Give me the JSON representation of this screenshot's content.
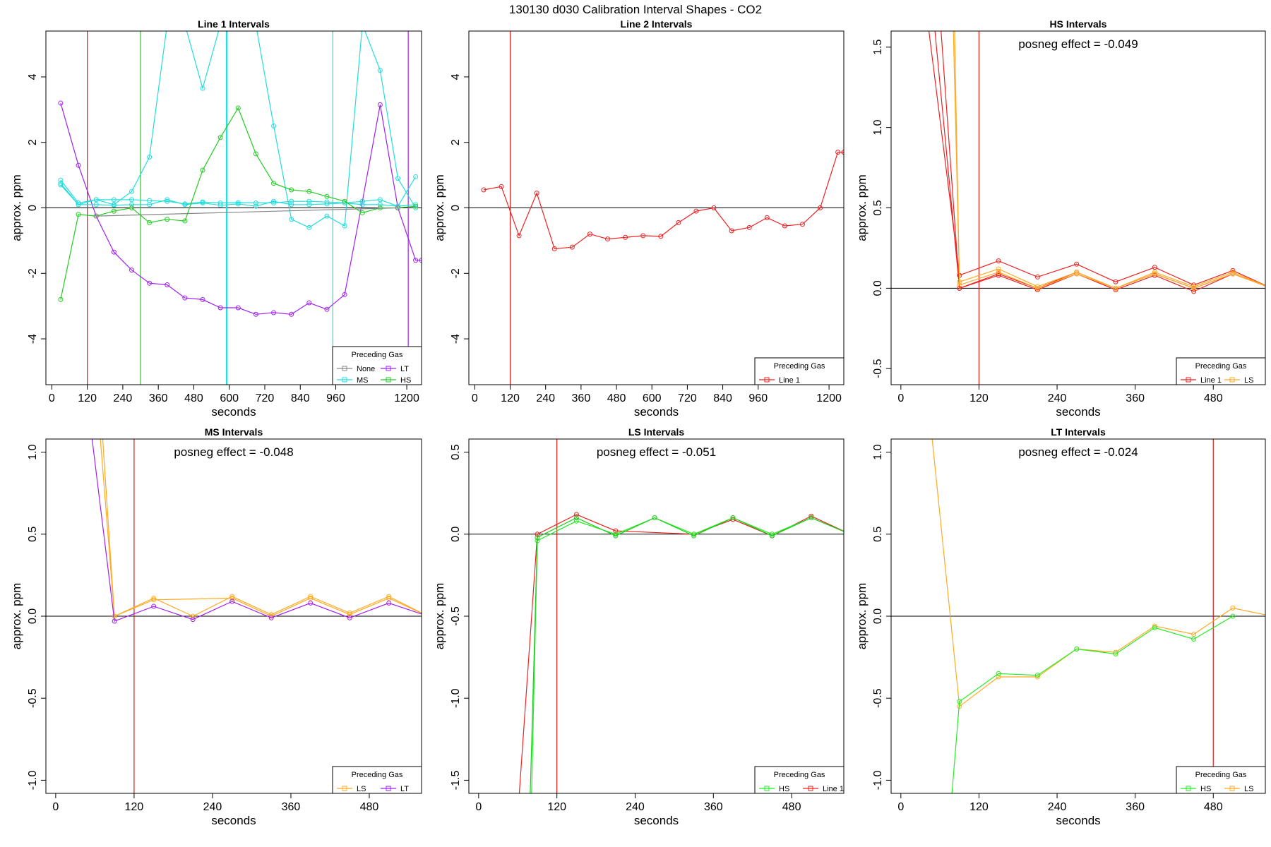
{
  "figure": {
    "title": "130130  d030   Calibration Interval Shapes - CO2"
  },
  "chart_data": [
    {
      "type": "line",
      "title": "Line 1 Intervals",
      "xlabel": "seconds",
      "ylabel": "approx. ppm",
      "xlim": [
        -20,
        1250
      ],
      "ylim": [
        -5.4,
        5.4
      ],
      "xticks": [
        0,
        120,
        240,
        360,
        480,
        600,
        720,
        840,
        960,
        1200
      ],
      "yticks": [
        -4,
        -2,
        0,
        2,
        4
      ],
      "vlines": [
        {
          "x": 120,
          "color": "#D81B1B"
        },
        {
          "x": 300,
          "color": "#22CC22"
        },
        {
          "x": 590,
          "color": "#22DDDD"
        },
        {
          "x": 593,
          "color": "#22DDDD"
        },
        {
          "x": 950,
          "color": "#22DDDD"
        },
        {
          "x": 1205,
          "color": "#A020F0"
        }
      ],
      "annotation": "",
      "legend": {
        "title": "Preceding Gas",
        "position": "bottom-right",
        "cols": 2,
        "entries": [
          {
            "name": "None",
            "color": "#888888"
          },
          {
            "name": "LT",
            "color": "#A020F0"
          },
          {
            "name": "MS",
            "color": "#22DDDD"
          },
          {
            "name": "HS",
            "color": "#22CC22"
          }
        ]
      },
      "series": [
        {
          "name": "LT",
          "color": "#A020F0",
          "x": [
            30,
            90,
            150,
            210,
            270,
            330,
            390,
            450,
            510,
            570,
            630,
            690,
            750,
            810,
            870,
            930,
            990,
            1050,
            1110,
            1170,
            1230,
            1250
          ],
          "y": [
            3.2,
            1.3,
            -0.25,
            -1.35,
            -1.9,
            -2.3,
            -2.35,
            -2.75,
            -2.8,
            -3.05,
            -3.05,
            -3.25,
            -3.2,
            -3.25,
            -2.9,
            -3.1,
            -2.65,
            0.2,
            3.15,
            0.0,
            -1.6,
            -1.6
          ]
        },
        {
          "name": "MS",
          "color": "#22DDDD",
          "x": [
            30,
            90,
            150,
            210,
            270,
            330,
            390,
            450,
            510,
            570,
            630,
            690,
            750,
            810,
            870,
            930,
            990,
            1050,
            1110,
            1170,
            1230
          ],
          "y": [
            0.85,
            0.15,
            0.25,
            0.1,
            0.5,
            1.55,
            5.6,
            5.6,
            3.65,
            5.6,
            5.6,
            5.6,
            2.5,
            -0.35,
            -0.6,
            -0.25,
            -0.55,
            5.6,
            4.2,
            0.9,
            0.0
          ]
        },
        {
          "name": "MS",
          "color": "#22DDDD",
          "x": [
            30,
            90,
            150,
            210,
            270,
            330,
            390,
            450,
            510,
            570,
            630,
            690,
            750,
            810,
            870,
            930,
            990,
            1050,
            1110,
            1170,
            1230
          ],
          "y": [
            0.7,
            0.1,
            0.25,
            0.25,
            0.25,
            0.22,
            0.2,
            0.12,
            0.18,
            0.15,
            0.16,
            0.15,
            0.15,
            0.2,
            0.2,
            0.18,
            0.15,
            0.2,
            0.25,
            0.05,
            0.95
          ]
        },
        {
          "name": "MS",
          "color": "#22DDDD",
          "x": [
            30,
            90,
            150,
            210,
            270,
            330,
            390,
            450,
            510,
            570,
            630,
            690,
            750,
            810,
            870,
            930,
            990,
            1050,
            1110,
            1170,
            1230
          ],
          "y": [
            0.75,
            0.1,
            0.1,
            0.08,
            0.1,
            0.1,
            0.25,
            0.1,
            0.15,
            0.08,
            0.12,
            0.05,
            0.2,
            0.1,
            0.1,
            0.12,
            0.15,
            0.1,
            0.1,
            0.05,
            0.1
          ]
        },
        {
          "name": "HS",
          "color": "#22CC22",
          "x": [
            30,
            90,
            150,
            210,
            270,
            330,
            390,
            450,
            510,
            570,
            630,
            690,
            750,
            810,
            870,
            930,
            990,
            1050,
            1110,
            1170,
            1230
          ],
          "y": [
            -2.8,
            -0.2,
            -0.25,
            -0.1,
            0.0,
            -0.45,
            -0.35,
            -0.4,
            1.15,
            2.15,
            3.05,
            1.65,
            0.75,
            0.55,
            0.5,
            0.35,
            0.2,
            -0.15,
            0.0,
            0.0,
            0.05
          ]
        },
        {
          "name": "None",
          "color": "#888888",
          "x": [
            150,
            1170
          ],
          "y": [
            -0.25,
            0.0
          ]
        }
      ]
    },
    {
      "type": "line",
      "title": "Line 2 Intervals",
      "xlabel": "seconds",
      "ylabel": "approx. ppm",
      "xlim": [
        -20,
        1250
      ],
      "ylim": [
        -5.4,
        5.4
      ],
      "xticks": [
        0,
        120,
        240,
        360,
        480,
        600,
        720,
        840,
        960,
        1200
      ],
      "yticks": [
        -4,
        -2,
        0,
        2,
        4
      ],
      "vlines": [
        {
          "x": 120,
          "color": "#D81B1B"
        }
      ],
      "annotation": "",
      "legend": {
        "title": "Preceding Gas",
        "position": "bottom-right",
        "cols": 1,
        "entries": [
          {
            "name": "Line 1",
            "color": "#EE2222"
          }
        ]
      },
      "series": [
        {
          "name": "Line 1",
          "color": "#EE2222",
          "x": [
            30,
            90,
            150,
            210,
            270,
            330,
            390,
            450,
            510,
            570,
            630,
            690,
            750,
            810,
            870,
            930,
            990,
            1050,
            1110,
            1170,
            1230,
            1250
          ],
          "y": [
            0.55,
            0.65,
            -0.85,
            0.45,
            -1.25,
            -1.2,
            -0.8,
            -0.95,
            -0.9,
            -0.85,
            -0.87,
            -0.45,
            -0.1,
            0.0,
            -0.7,
            -0.6,
            -0.3,
            -0.55,
            -0.5,
            0.0,
            1.7,
            1.7
          ]
        }
      ]
    },
    {
      "type": "line",
      "title": "HS Intervals",
      "xlabel": "seconds",
      "ylabel": "approx. ppm",
      "xlim": [
        -15,
        560
      ],
      "ylim": [
        -0.6,
        1.6
      ],
      "xticks": [
        0,
        120,
        240,
        360,
        480
      ],
      "yticks": [
        -0.5,
        0.0,
        0.5,
        1.0,
        1.5
      ],
      "vlines": [
        {
          "x": 120,
          "color": "#D81B1B"
        }
      ],
      "annotation": "posneg effect = -0.049",
      "legend": {
        "title": "Preceding Gas",
        "position": "bottom-right",
        "cols": 2,
        "entries": [
          {
            "name": "Line 1",
            "color": "#EE2222"
          },
          {
            "name": "LS",
            "color": "#FFAA22"
          }
        ]
      },
      "series": [
        {
          "name": "Line 1",
          "color": "#EE2222",
          "x": [
            40,
            90,
            150,
            210,
            270,
            330,
            390,
            450,
            510,
            570
          ],
          "y": [
            1.7,
            0.08,
            0.17,
            0.07,
            0.15,
            0.04,
            0.13,
            0.02,
            0.11,
            0.0
          ]
        },
        {
          "name": "Line 1",
          "color": "#EE2222",
          "x": [
            50,
            90,
            150,
            210,
            270,
            330,
            390,
            450,
            510,
            570
          ],
          "y": [
            1.7,
            0.0,
            0.09,
            0.0,
            0.1,
            0.0,
            0.09,
            0.0,
            0.09,
            0.0
          ]
        },
        {
          "name": "Line 1",
          "color": "#EE2222",
          "x": [
            60,
            90,
            150,
            210,
            270,
            330,
            390,
            450,
            510,
            570
          ],
          "y": [
            1.7,
            0.0,
            0.08,
            -0.01,
            0.09,
            -0.01,
            0.08,
            -0.02,
            0.09,
            0.0
          ]
        },
        {
          "name": "LS",
          "color": "#FFAA22",
          "x": [
            80,
            90,
            150,
            210,
            270,
            330,
            390,
            450,
            510,
            570
          ],
          "y": [
            1.7,
            0.04,
            0.12,
            0.01,
            0.1,
            0.0,
            0.1,
            0.01,
            0.1,
            0.0
          ]
        },
        {
          "name": "LS",
          "color": "#FFAA22",
          "x": [
            82,
            90,
            150,
            210,
            270,
            330,
            390,
            450,
            510,
            570
          ],
          "y": [
            1.7,
            0.02,
            0.1,
            0.0,
            0.09,
            0.0,
            0.09,
            0.0,
            0.09,
            0.0
          ]
        }
      ]
    },
    {
      "type": "line",
      "title": "MS Intervals",
      "xlabel": "seconds",
      "ylabel": "approx. ppm",
      "xlim": [
        -15,
        560
      ],
      "ylim": [
        -1.08,
        1.08
      ],
      "xticks": [
        0,
        120,
        240,
        360,
        480
      ],
      "yticks": [
        -1.0,
        -0.5,
        0.0,
        0.5,
        1.0
      ],
      "vlines": [
        {
          "x": 120,
          "color": "#D81B1B"
        }
      ],
      "annotation": "posneg effect = -0.048",
      "legend": {
        "title": "Preceding Gas",
        "position": "bottom-right",
        "cols": 2,
        "entries": [
          {
            "name": "LS",
            "color": "#FFAA22"
          },
          {
            "name": "LT",
            "color": "#A020F0"
          }
        ]
      },
      "series": [
        {
          "name": "LS",
          "color": "#FFAA22",
          "x": [
            66,
            90,
            150,
            210,
            270,
            330,
            390,
            450,
            510,
            570
          ],
          "y": [
            1.2,
            0.0,
            0.11,
            0.0,
            0.12,
            0.01,
            0.12,
            0.02,
            0.12,
            0.0
          ]
        },
        {
          "name": "LS",
          "color": "#FFAA22",
          "x": [
            70,
            90,
            150,
            270,
            330,
            390,
            450,
            510,
            570
          ],
          "y": [
            1.2,
            0.0,
            0.1,
            0.11,
            0.0,
            0.11,
            0.01,
            0.11,
            0.0
          ]
        },
        {
          "name": "LT",
          "color": "#A020F0",
          "x": [
            52,
            90,
            150,
            210,
            270,
            330,
            390,
            450,
            510,
            570
          ],
          "y": [
            1.2,
            -0.03,
            0.06,
            -0.02,
            0.09,
            -0.01,
            0.08,
            -0.01,
            0.08,
            0.0
          ]
        }
      ]
    },
    {
      "type": "line",
      "title": "LS Intervals",
      "xlabel": "seconds",
      "ylabel": "approx. ppm",
      "xlim": [
        -15,
        560
      ],
      "ylim": [
        -1.58,
        0.58
      ],
      "xticks": [
        0,
        120,
        240,
        360,
        480
      ],
      "yticks": [
        -1.5,
        -1.0,
        -0.5,
        0.0,
        0.5
      ],
      "vlines": [
        {
          "x": 120,
          "color": "#D81B1B"
        }
      ],
      "annotation": "posneg effect = -0.051",
      "legend": {
        "title": "Preceding Gas",
        "position": "bottom-right",
        "cols": 2,
        "entries": [
          {
            "name": "HS",
            "color": "#22EE22"
          },
          {
            "name": "Line 1",
            "color": "#EE2222"
          }
        ]
      },
      "series": [
        {
          "name": "Line 1",
          "color": "#EE2222",
          "x": [
            62,
            90,
            150,
            210,
            330,
            390,
            450,
            510,
            570
          ],
          "y": [
            -1.6,
            0.0,
            0.12,
            0.02,
            0.0,
            0.09,
            -0.01,
            0.11,
            0.0
          ]
        },
        {
          "name": "HS",
          "color": "#22EE22",
          "x": [
            81,
            90,
            150,
            210,
            270,
            330,
            390,
            450,
            510,
            570
          ],
          "y": [
            -1.6,
            -0.04,
            0.08,
            0.0,
            0.1,
            0.0,
            0.1,
            0.0,
            0.1,
            0.0
          ]
        },
        {
          "name": "HS",
          "color": "#22CC22",
          "x": [
            79,
            90,
            150,
            210,
            270,
            330,
            390,
            450,
            510,
            570
          ],
          "y": [
            -1.6,
            -0.02,
            0.1,
            -0.01,
            0.1,
            -0.01,
            0.1,
            -0.01,
            0.1,
            0.0
          ]
        }
      ]
    },
    {
      "type": "line",
      "title": "LT Intervals",
      "xlabel": "seconds",
      "ylabel": "approx. ppm",
      "xlim": [
        -15,
        560
      ],
      "ylim": [
        -1.08,
        1.08
      ],
      "xticks": [
        0,
        120,
        240,
        360,
        480
      ],
      "yticks": [
        -1.0,
        -0.5,
        0.0,
        0.5,
        1.0
      ],
      "vlines": [
        {
          "x": 480,
          "color": "#D81B1B"
        }
      ],
      "annotation": "posneg effect = -0.024",
      "legend": {
        "title": "Preceding Gas",
        "position": "bottom-right",
        "cols": 2,
        "entries": [
          {
            "name": "HS",
            "color": "#22EE22"
          },
          {
            "name": "LS",
            "color": "#FFAA22"
          }
        ]
      },
      "series": [
        {
          "name": "LS",
          "color": "#FFAA22",
          "x": [
            45,
            90,
            150,
            210,
            270,
            330,
            390,
            450,
            510,
            570
          ],
          "y": [
            1.2,
            -0.55,
            -0.37,
            -0.37,
            -0.2,
            -0.22,
            -0.06,
            -0.11,
            0.05,
            0.0
          ]
        },
        {
          "name": "HS",
          "color": "#22EE22",
          "x": [
            76,
            90,
            150,
            210,
            270,
            330,
            390,
            450,
            510
          ],
          "y": [
            -1.2,
            -0.52,
            -0.35,
            -0.36,
            -0.2,
            -0.23,
            -0.07,
            -0.14,
            0.0
          ]
        }
      ]
    }
  ]
}
